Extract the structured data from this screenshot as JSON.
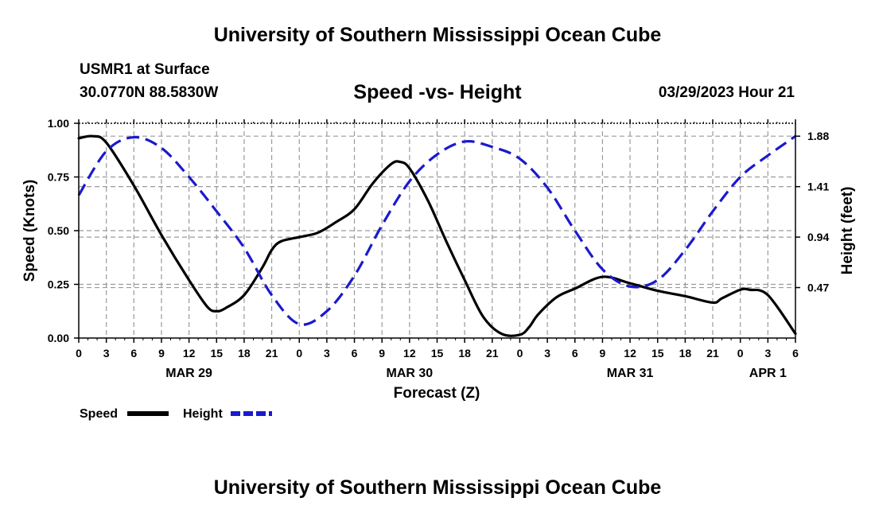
{
  "header": {
    "main_title": "University of Southern Mississippi Ocean Cube",
    "station": "USMR1 at Surface",
    "coords": "30.0770N  88.5830W",
    "subtitle": "Speed -vs- Height",
    "datetime": "03/29/2023 Hour 21"
  },
  "footer": {
    "title": "University of Southern Mississippi Ocean Cube"
  },
  "chart_data": {
    "type": "line",
    "title": "Speed -vs- Height",
    "xlabel": "Forecast (Z)",
    "ylabel": "Speed (Knots)",
    "y2label": "Height (feet)",
    "xlim": [
      0,
      78
    ],
    "ylim": [
      0,
      1.0
    ],
    "y2lim": [
      0,
      2.0
    ],
    "x_ticks": [
      0,
      3,
      6,
      9,
      12,
      15,
      18,
      21,
      24,
      27,
      30,
      33,
      36,
      39,
      42,
      45,
      48,
      51,
      54,
      57,
      60,
      63,
      66,
      69,
      72,
      75,
      78
    ],
    "x_tick_labels": [
      "0",
      "3",
      "6",
      "9",
      "12",
      "15",
      "18",
      "21",
      "0",
      "3",
      "6",
      "9",
      "12",
      "15",
      "18",
      "21",
      "0",
      "3",
      "6",
      "9",
      "12",
      "15",
      "18",
      "21",
      "0",
      "3",
      "6"
    ],
    "date_labels": [
      {
        "label": "MAR 29",
        "x": 12
      },
      {
        "label": "MAR 30",
        "x": 36
      },
      {
        "label": "MAR 31",
        "x": 60
      },
      {
        "label": "APR 1",
        "x": 75
      }
    ],
    "y_ticks": [
      0,
      0.25,
      0.5,
      0.75,
      1.0
    ],
    "y_tick_labels": [
      "0.00",
      "0.25",
      "0.50",
      "0.75",
      "1.00"
    ],
    "y2_ticks": [
      0.47,
      0.94,
      1.41,
      1.88
    ],
    "y2_tick_labels": [
      "0.47",
      "0.94",
      "1.41",
      "1.88"
    ],
    "grid": true,
    "legend_position": "bottom-left",
    "series": [
      {
        "name": "Speed",
        "axis": "left",
        "color": "#000000",
        "dash": "solid",
        "x": [
          0,
          1.5,
          3,
          6,
          9,
          12,
          14,
          15,
          16,
          18,
          20,
          21,
          22,
          24,
          26,
          28,
          30,
          32,
          34,
          35,
          36,
          38,
          40,
          42,
          44,
          46,
          48,
          49,
          50,
          52,
          54,
          57,
          60,
          63,
          66,
          69,
          70,
          72,
          73,
          75,
          78
        ],
        "y": [
          0.93,
          0.94,
          0.91,
          0.71,
          0.48,
          0.27,
          0.145,
          0.125,
          0.14,
          0.2,
          0.33,
          0.41,
          0.45,
          0.47,
          0.49,
          0.54,
          0.6,
          0.72,
          0.81,
          0.82,
          0.79,
          0.64,
          0.45,
          0.27,
          0.1,
          0.02,
          0.015,
          0.05,
          0.11,
          0.19,
          0.23,
          0.285,
          0.255,
          0.22,
          0.195,
          0.165,
          0.185,
          0.225,
          0.225,
          0.2,
          0.02
        ]
      },
      {
        "name": "Height",
        "axis": "right",
        "color": "#1a1acd",
        "dash": "dashed",
        "x": [
          0,
          3,
          6,
          9,
          12,
          15,
          18,
          21,
          24,
          27,
          30,
          33,
          36,
          39,
          42,
          45,
          48,
          51,
          54,
          57,
          60,
          63,
          66,
          69,
          72,
          75,
          78
        ],
        "y": [
          1.33,
          1.74,
          1.87,
          1.77,
          1.5,
          1.18,
          0.84,
          0.4,
          0.13,
          0.25,
          0.58,
          1.05,
          1.46,
          1.71,
          1.83,
          1.78,
          1.67,
          1.4,
          1.0,
          0.64,
          0.48,
          0.54,
          0.82,
          1.18,
          1.5,
          1.7,
          1.88
        ]
      }
    ]
  },
  "legend": {
    "items": [
      {
        "label": "Speed",
        "color": "#000000",
        "dash": "solid"
      },
      {
        "label": "Height",
        "color": "#1a1acd",
        "dash": "dashed"
      }
    ]
  }
}
